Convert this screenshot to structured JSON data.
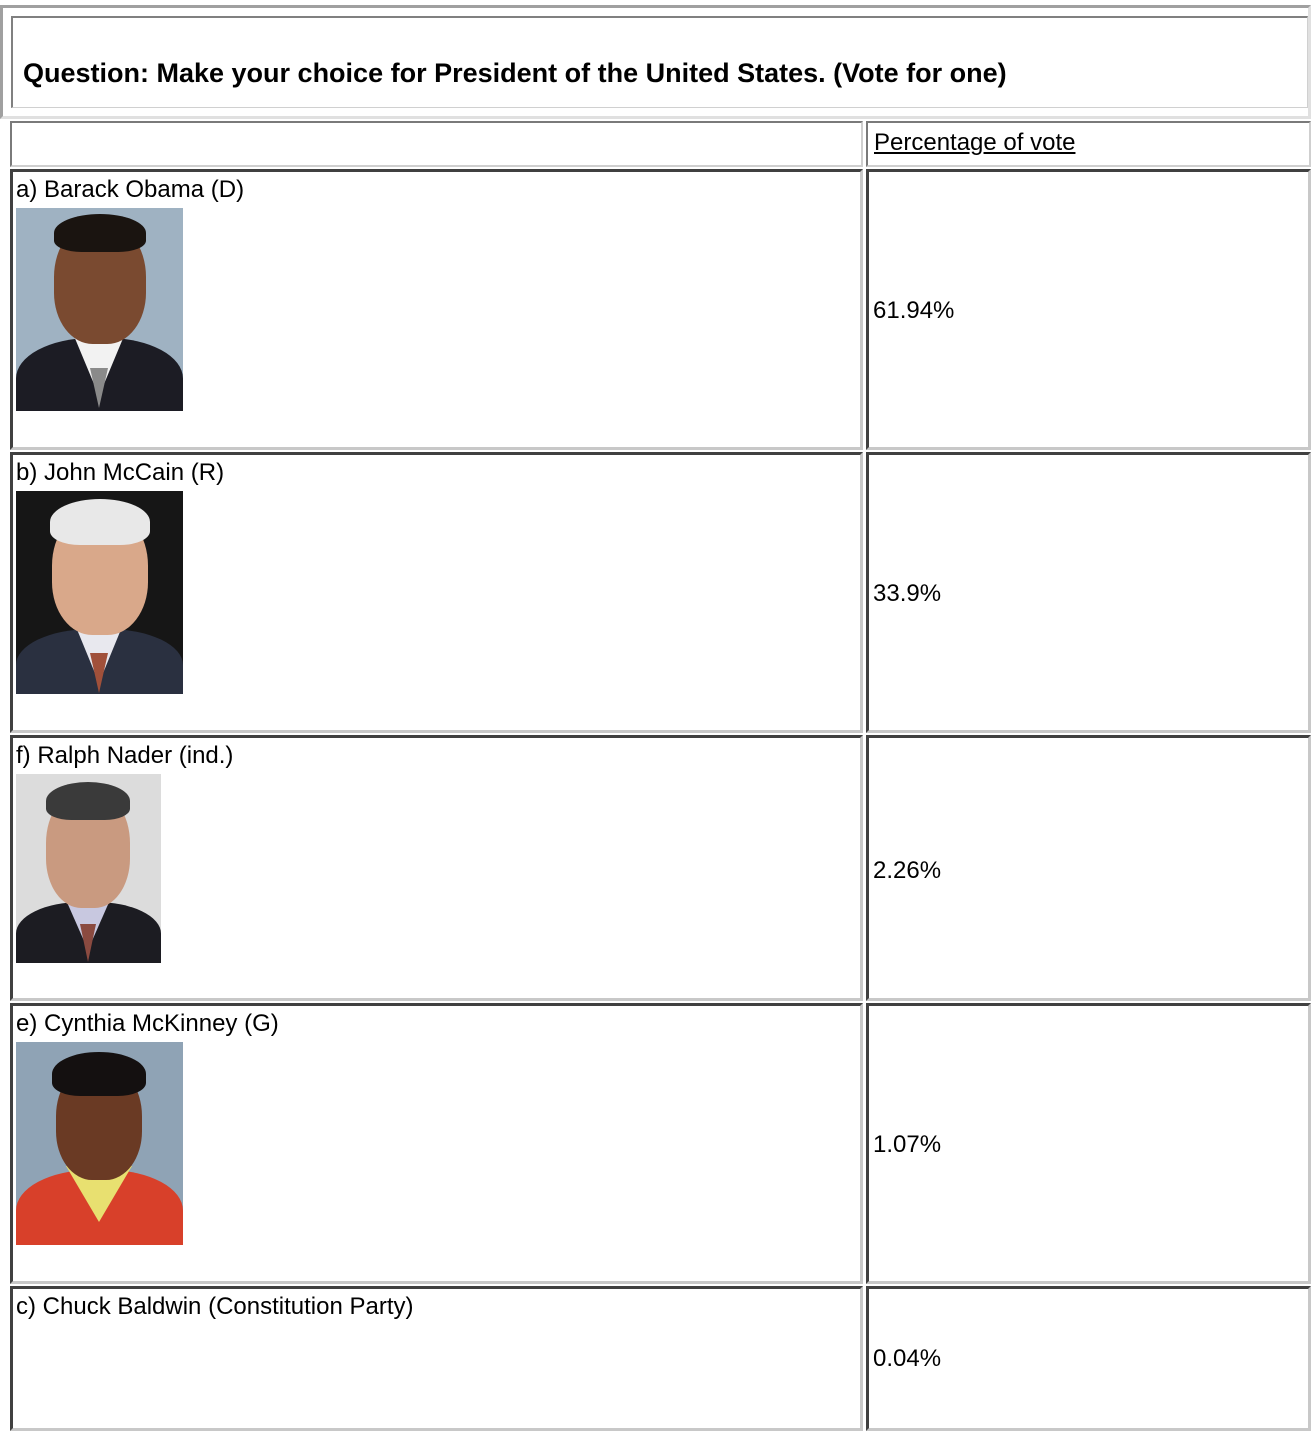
{
  "question": {
    "text": "Question: Make your choice for President of the United States. (Vote for one)"
  },
  "results_table": {
    "column_header": "Percentage of vote",
    "rows": [
      {
        "label": "a) Barack Obama (D)",
        "percentage": "61.94%",
        "has_photo": true,
        "photo_icon": "portrait-obama-icon"
      },
      {
        "label": "b) John McCain (R)",
        "percentage": "33.9%",
        "has_photo": true,
        "photo_icon": "portrait-mccain-icon"
      },
      {
        "label": "f) Ralph Nader (ind.)",
        "percentage": "2.26%",
        "has_photo": true,
        "photo_icon": "portrait-nader-icon"
      },
      {
        "label": "e) Cynthia McKinney (G)",
        "percentage": "1.07%",
        "has_photo": true,
        "photo_icon": "portrait-mckinney-icon"
      },
      {
        "label": "c) Chuck Baldwin (Constitution Party)",
        "percentage": "0.04%",
        "has_photo": false
      }
    ]
  },
  "colors": {
    "portrait_bg_blue": "#8fa3b5",
    "portrait_bg_dark": "#1a1a1a",
    "portrait_bg_light": "#d9d9d9",
    "skin_dark": "#7a4a30",
    "skin_light": "#d9a88a",
    "suit_dark": "#1c1c24",
    "jacket_red": "#d8402a"
  }
}
